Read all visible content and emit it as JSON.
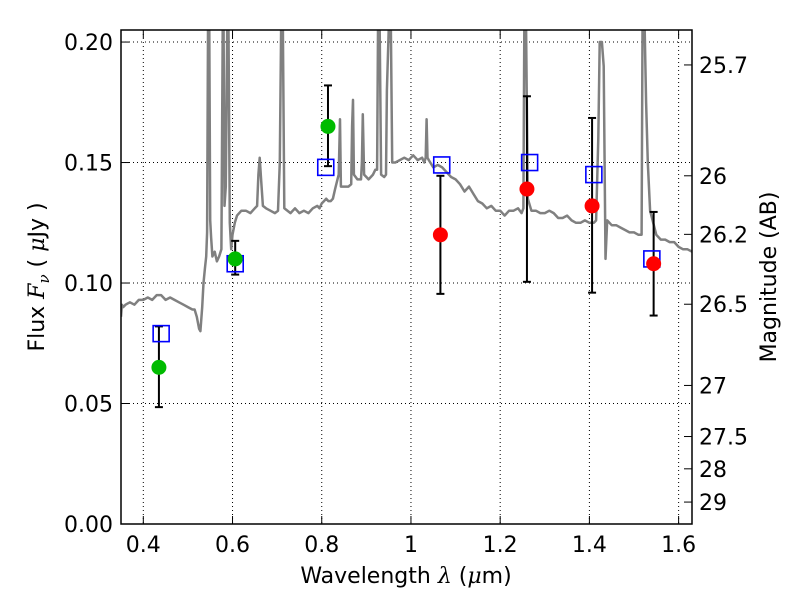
{
  "chart_data": {
    "type": "scatter",
    "xlabel_prefix": "Wavelength  ",
    "xlabel_symbol": "λ",
    "xlabel_suffix": " (",
    "xlabel_unit_mu": "μ",
    "xlabel_unit": "m)",
    "ylabel_prefix": "Flux  ",
    "ylabel_symbol": "F",
    "ylabel_sub": "ν",
    "ylabel_mid": "  ( ",
    "ylabel_mu": "μ",
    "ylabel_unit": "Jy )",
    "y2label": "Magnitude (AB)",
    "xlim": [
      0.35,
      1.63
    ],
    "ylim": [
      0.0,
      0.205
    ],
    "x_ticks": [
      0.4,
      0.6,
      0.8,
      1.0,
      1.2,
      1.4,
      1.6
    ],
    "x_tick_labels": [
      "0.4",
      "0.6",
      "0.8",
      "1",
      "1.2",
      "1.4",
      "1.6"
    ],
    "y_ticks": [
      0.0,
      0.05,
      0.1,
      0.15,
      0.2
    ],
    "y_tick_labels": [
      "0.00",
      "0.05",
      "0.10",
      "0.15",
      "0.20"
    ],
    "y2_ticks": [
      {
        "label": "25.7",
        "flux": 0.1905
      },
      {
        "label": "26",
        "flux": 0.1445
      },
      {
        "label": "26.2",
        "flux": 0.1202
      },
      {
        "label": "26.5",
        "flux": 0.0912
      },
      {
        "label": "27",
        "flux": 0.0575
      },
      {
        "label": "27.5",
        "flux": 0.0363
      },
      {
        "label": "28",
        "flux": 0.0229
      },
      {
        "label": "29",
        "flux": 0.0091
      }
    ],
    "grid": true,
    "series": [
      {
        "marker": "circle",
        "color": "#00bb00",
        "points": [
          {
            "x": 0.435,
            "y": 0.065,
            "err_lo": 0.0485,
            "err_hi": 0.082
          },
          {
            "x": 0.606,
            "y": 0.11,
            "err_lo": 0.1035,
            "err_hi": 0.1175
          },
          {
            "x": 0.814,
            "y": 0.165,
            "err_lo": 0.1485,
            "err_hi": 0.182
          }
        ]
      },
      {
        "marker": "circle",
        "color": "#ff0000",
        "points": [
          {
            "x": 1.066,
            "y": 0.12,
            "err_lo": 0.0955,
            "err_hi": 0.1445
          },
          {
            "x": 1.26,
            "y": 0.139,
            "err_lo": 0.1005,
            "err_hi": 0.1775
          },
          {
            "x": 1.406,
            "y": 0.132,
            "err_lo": 0.096,
            "err_hi": 0.1685
          },
          {
            "x": 1.544,
            "y": 0.108,
            "err_lo": 0.0865,
            "err_hi": 0.1295
          }
        ]
      },
      {
        "marker": "open-square",
        "color": "#0000ff",
        "points": [
          {
            "x": 0.44,
            "y": 0.079
          },
          {
            "x": 0.606,
            "y": 0.108
          },
          {
            "x": 0.809,
            "y": 0.148
          },
          {
            "x": 1.069,
            "y": 0.149
          },
          {
            "x": 1.266,
            "y": 0.15
          },
          {
            "x": 1.41,
            "y": 0.145
          },
          {
            "x": 1.54,
            "y": 0.11
          }
        ]
      }
    ],
    "model_spectrum": {
      "color": "#808080",
      "points": [
        [
          0.35,
          0.086
        ],
        [
          0.352,
          0.091
        ],
        [
          0.355,
          0.09
        ],
        [
          0.36,
          0.091
        ],
        [
          0.37,
          0.092
        ],
        [
          0.38,
          0.091
        ],
        [
          0.39,
          0.093
        ],
        [
          0.4,
          0.093
        ],
        [
          0.41,
          0.094
        ],
        [
          0.42,
          0.093
        ],
        [
          0.43,
          0.095
        ],
        [
          0.44,
          0.095
        ],
        [
          0.45,
          0.093
        ],
        [
          0.46,
          0.094
        ],
        [
          0.47,
          0.093
        ],
        [
          0.48,
          0.092
        ],
        [
          0.49,
          0.091
        ],
        [
          0.5,
          0.09
        ],
        [
          0.51,
          0.089
        ],
        [
          0.515,
          0.089
        ],
        [
          0.52,
          0.086
        ],
        [
          0.525,
          0.081
        ],
        [
          0.528,
          0.08
        ],
        [
          0.532,
          0.09
        ],
        [
          0.535,
          0.1
        ],
        [
          0.538,
          0.106
        ],
        [
          0.541,
          0.111
        ],
        [
          0.543,
          0.121
        ],
        [
          0.545,
          0.205
        ],
        [
          0.548,
          0.205
        ],
        [
          0.55,
          0.126
        ],
        [
          0.552,
          0.119
        ],
        [
          0.555,
          0.111
        ],
        [
          0.56,
          0.113
        ],
        [
          0.565,
          0.109
        ],
        [
          0.57,
          0.111
        ],
        [
          0.575,
          0.114
        ],
        [
          0.578,
          0.205
        ],
        [
          0.58,
          0.205
        ],
        [
          0.582,
          0.132
        ],
        [
          0.585,
          0.14
        ],
        [
          0.588,
          0.205
        ],
        [
          0.591,
          0.205
        ],
        [
          0.594,
          0.125
        ],
        [
          0.597,
          0.114
        ],
        [
          0.6,
          0.12
        ],
        [
          0.605,
          0.125
        ],
        [
          0.61,
          0.128
        ],
        [
          0.62,
          0.13
        ],
        [
          0.63,
          0.13
        ],
        [
          0.64,
          0.129
        ],
        [
          0.65,
          0.131
        ],
        [
          0.655,
          0.132
        ],
        [
          0.658,
          0.145
        ],
        [
          0.661,
          0.152
        ],
        [
          0.664,
          0.143
        ],
        [
          0.668,
          0.132
        ],
        [
          0.675,
          0.131
        ],
        [
          0.685,
          0.13
        ],
        [
          0.695,
          0.129
        ],
        [
          0.702,
          0.13
        ],
        [
          0.706,
          0.15
        ],
        [
          0.709,
          0.205
        ],
        [
          0.713,
          0.205
        ],
        [
          0.716,
          0.131
        ],
        [
          0.73,
          0.129
        ],
        [
          0.74,
          0.131
        ],
        [
          0.75,
          0.129
        ],
        [
          0.76,
          0.13
        ],
        [
          0.77,
          0.129
        ],
        [
          0.78,
          0.131
        ],
        [
          0.79,
          0.132
        ],
        [
          0.795,
          0.131
        ],
        [
          0.8,
          0.133
        ],
        [
          0.805,
          0.134
        ],
        [
          0.81,
          0.135
        ],
        [
          0.815,
          0.134
        ],
        [
          0.82,
          0.134
        ],
        [
          0.825,
          0.135
        ],
        [
          0.83,
          0.139
        ],
        [
          0.838,
          0.145
        ],
        [
          0.841,
          0.168
        ],
        [
          0.843,
          0.14
        ],
        [
          0.85,
          0.14
        ],
        [
          0.86,
          0.14
        ],
        [
          0.866,
          0.141
        ],
        [
          0.868,
          0.165
        ],
        [
          0.87,
          0.176
        ],
        [
          0.872,
          0.145
        ],
        [
          0.88,
          0.143
        ],
        [
          0.888,
          0.143
        ],
        [
          0.89,
          0.15
        ],
        [
          0.892,
          0.17
        ],
        [
          0.895,
          0.145
        ],
        [
          0.905,
          0.143
        ],
        [
          0.915,
          0.145
        ],
        [
          0.92,
          0.147
        ],
        [
          0.924,
          0.147
        ],
        [
          0.926,
          0.205
        ],
        [
          0.93,
          0.205
        ],
        [
          0.933,
          0.145
        ],
        [
          0.94,
          0.144
        ],
        [
          0.944,
          0.145
        ],
        [
          0.946,
          0.18
        ],
        [
          0.95,
          0.205
        ],
        [
          0.955,
          0.205
        ],
        [
          0.958,
          0.15
        ],
        [
          0.965,
          0.15
        ],
        [
          0.975,
          0.151
        ],
        [
          0.985,
          0.152
        ],
        [
          0.995,
          0.151
        ],
        [
          1.005,
          0.153
        ],
        [
          1.015,
          0.151
        ],
        [
          1.025,
          0.152
        ],
        [
          1.03,
          0.15
        ],
        [
          1.033,
          0.152
        ],
        [
          1.035,
          0.168
        ],
        [
          1.037,
          0.152
        ],
        [
          1.04,
          0.151
        ],
        [
          1.05,
          0.148
        ],
        [
          1.06,
          0.149
        ],
        [
          1.07,
          0.148
        ],
        [
          1.08,
          0.146
        ],
        [
          1.09,
          0.144
        ],
        [
          1.1,
          0.143
        ],
        [
          1.11,
          0.141
        ],
        [
          1.12,
          0.138
        ],
        [
          1.13,
          0.14
        ],
        [
          1.14,
          0.137
        ],
        [
          1.15,
          0.134
        ],
        [
          1.16,
          0.133
        ],
        [
          1.17,
          0.131
        ],
        [
          1.18,
          0.132
        ],
        [
          1.19,
          0.13
        ],
        [
          1.2,
          0.13
        ],
        [
          1.21,
          0.128
        ],
        [
          1.22,
          0.13
        ],
        [
          1.23,
          0.13
        ],
        [
          1.24,
          0.131
        ],
        [
          1.248,
          0.129
        ],
        [
          1.252,
          0.131
        ],
        [
          1.254,
          0.205
        ],
        [
          1.258,
          0.205
        ],
        [
          1.262,
          0.135
        ],
        [
          1.27,
          0.13
        ],
        [
          1.28,
          0.13
        ],
        [
          1.29,
          0.129
        ],
        [
          1.3,
          0.129
        ],
        [
          1.31,
          0.13
        ],
        [
          1.32,
          0.129
        ],
        [
          1.33,
          0.127
        ],
        [
          1.34,
          0.127
        ],
        [
          1.35,
          0.128
        ],
        [
          1.36,
          0.126
        ],
        [
          1.37,
          0.125
        ],
        [
          1.38,
          0.125
        ],
        [
          1.39,
          0.126
        ],
        [
          1.4,
          0.125
        ],
        [
          1.41,
          0.125
        ],
        [
          1.415,
          0.126
        ],
        [
          1.42,
          0.16
        ],
        [
          1.423,
          0.2
        ],
        [
          1.428,
          0.2
        ],
        [
          1.432,
          0.19
        ],
        [
          1.436,
          0.11
        ],
        [
          1.44,
          0.126
        ],
        [
          1.45,
          0.124
        ],
        [
          1.46,
          0.124
        ],
        [
          1.47,
          0.123
        ],
        [
          1.48,
          0.122
        ],
        [
          1.49,
          0.121
        ],
        [
          1.5,
          0.121
        ],
        [
          1.51,
          0.12
        ],
        [
          1.517,
          0.12
        ],
        [
          1.519,
          0.205
        ],
        [
          1.524,
          0.205
        ],
        [
          1.527,
          0.175
        ],
        [
          1.531,
          0.15
        ],
        [
          1.536,
          0.13
        ],
        [
          1.55,
          0.12
        ],
        [
          1.56,
          0.118
        ],
        [
          1.57,
          0.118
        ],
        [
          1.58,
          0.117
        ],
        [
          1.59,
          0.117
        ],
        [
          1.6,
          0.115
        ],
        [
          1.61,
          0.114
        ],
        [
          1.62,
          0.114
        ],
        [
          1.63,
          0.113
        ]
      ]
    }
  }
}
